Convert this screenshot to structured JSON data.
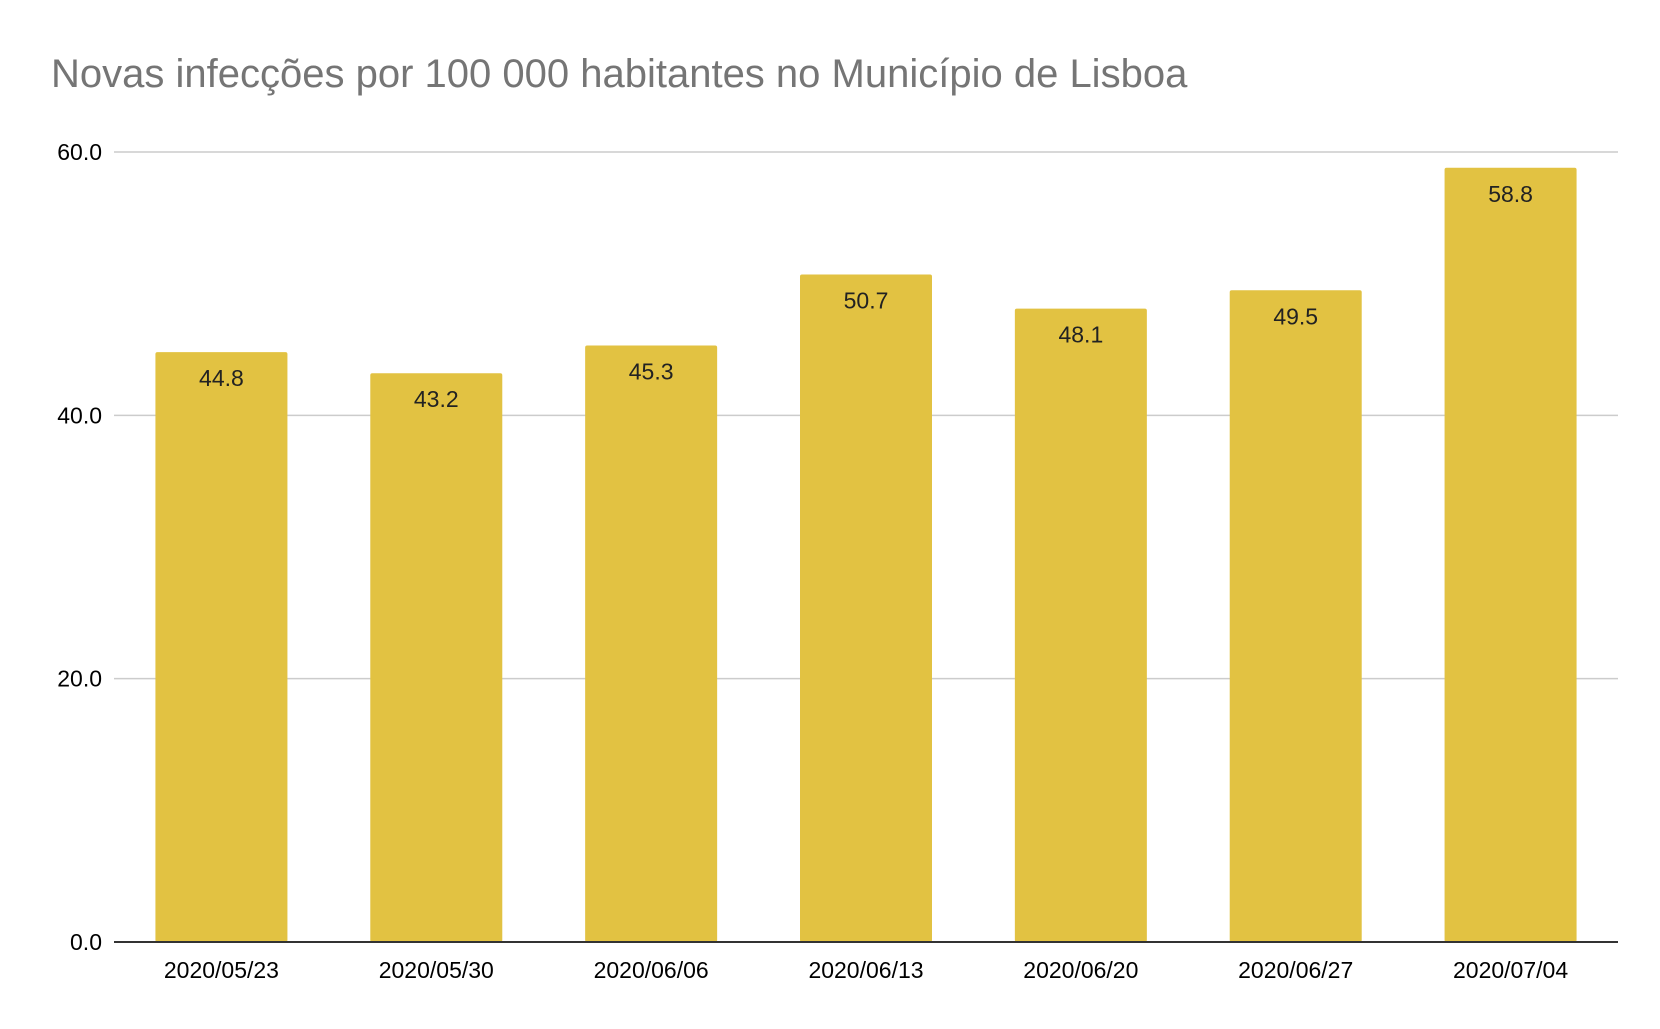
{
  "chart_data": {
    "type": "bar",
    "title": "Novas infecções por 100 000 habitantes no Município de Lisboa",
    "xlabel": "",
    "ylabel": "",
    "categories": [
      "2020/05/23",
      "2020/05/30",
      "2020/06/06",
      "2020/06/13",
      "2020/06/20",
      "2020/06/27",
      "2020/07/04"
    ],
    "values": [
      44.8,
      43.2,
      45.3,
      50.7,
      48.1,
      49.5,
      58.8
    ],
    "data_labels": [
      "44.8",
      "43.2",
      "45.3",
      "50.7",
      "48.1",
      "49.5",
      "58.8"
    ],
    "ylim": [
      0,
      60
    ],
    "y_ticks": [
      0,
      20,
      40,
      60
    ],
    "y_tick_labels": [
      "0.0",
      "20.0",
      "40.0",
      "60.0"
    ],
    "grid": true,
    "legend": "none",
    "colors": {
      "bar": "#e2c242",
      "grid": "#cccccc",
      "axis": "#333333",
      "title": "#757575",
      "text": "#000000"
    }
  }
}
